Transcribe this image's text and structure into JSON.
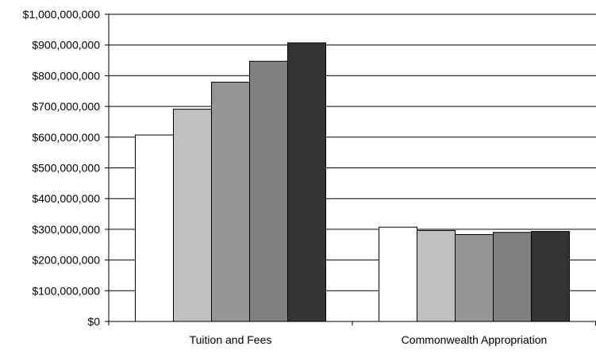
{
  "chart_data": {
    "type": "bar",
    "title": "",
    "xlabel": "",
    "ylabel": "",
    "categories": [
      "Tuition and Fees",
      "Commonwealth Appropriation"
    ],
    "series": [
      {
        "values": [
          607000000,
          307000000
        ],
        "color": "#ffffff"
      },
      {
        "values": [
          691000000,
          296000000
        ],
        "color": "#c0c0c0"
      },
      {
        "values": [
          779000000,
          283000000
        ],
        "color": "#969696"
      },
      {
        "values": [
          847000000,
          290000000
        ],
        "color": "#808080"
      },
      {
        "values": [
          907000000,
          293000000
        ],
        "color": "#333333"
      }
    ],
    "ylim": [
      0,
      1000000000
    ],
    "yticks": [
      0,
      100000000,
      200000000,
      300000000,
      400000000,
      500000000,
      600000000,
      700000000,
      800000000,
      900000000,
      1000000000
    ],
    "ytick_labels": [
      "$0",
      "$100,000,000",
      "$200,000,000",
      "$300,000,000",
      "$400,000,000",
      "$500,000,000",
      "$600,000,000",
      "$700,000,000",
      "$800,000,000",
      "$900,000,000",
      "$1,000,000,000"
    ],
    "grid": true,
    "legend": "none"
  }
}
